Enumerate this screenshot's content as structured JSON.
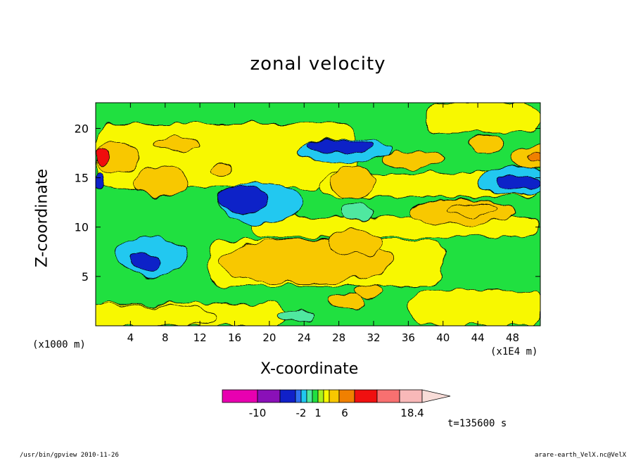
{
  "chart_data": {
    "type": "heatmap",
    "title": "zonal velocity",
    "xlabel": "X-coordinate",
    "ylabel": "Z-coordinate",
    "x_unit_label": "(x1000 m)",
    "x_scale_label": "(x1E4 m)",
    "x_ticks": [
      4,
      8,
      12,
      16,
      20,
      24,
      28,
      32,
      36,
      40,
      44,
      48
    ],
    "y_ticks": [
      5,
      10,
      15,
      20
    ],
    "xlim": [
      0,
      51.2
    ],
    "ylim": [
      0,
      22.6
    ],
    "colorbar": {
      "labels": [
        -10,
        -2,
        1,
        6,
        18.4
      ],
      "colors": [
        "#e800b0",
        "#8a10b8",
        "#1020c8",
        "#3070f0",
        "#20c8f0",
        "#50e8a0",
        "#20e040",
        "#a8f020",
        "#f8f800",
        "#f8c800",
        "#f08000",
        "#f01010",
        "#f87070",
        "#f8b8b8"
      ],
      "extend_color": "#f8dcd8"
    },
    "regions": [
      {
        "value": -6,
        "x": 5.6,
        "y": 6.5,
        "rx": 1.8,
        "ry": 0.9
      },
      {
        "value": -4,
        "x": 6.5,
        "y": 7.0,
        "rx": 4.0,
        "ry": 2.1
      },
      {
        "value": -5,
        "x": 17.0,
        "y": 12.7,
        "rx": 2.9,
        "ry": 1.3
      },
      {
        "value": -3,
        "x": 19.0,
        "y": 12.4,
        "rx": 5.0,
        "ry": 2.0
      },
      {
        "value": -6,
        "x": 28.0,
        "y": 18.2,
        "rx": 3.8,
        "ry": 0.6
      },
      {
        "value": -3,
        "x": 28.5,
        "y": 17.7,
        "rx": 5.5,
        "ry": 1.2
      },
      {
        "value": -6,
        "x": 48.5,
        "y": 14.5,
        "rx": 2.5,
        "ry": 0.8
      },
      {
        "value": -3,
        "x": 48.0,
        "y": 14.6,
        "rx": 4.0,
        "ry": 1.5
      },
      {
        "value": -6,
        "x": 0.4,
        "y": 14.7,
        "rx": 0.6,
        "ry": 1.0
      },
      {
        "value": -2,
        "x": 30.2,
        "y": 11.5,
        "rx": 1.6,
        "ry": 0.9
      },
      {
        "value": -2,
        "x": 23.0,
        "y": 1.0,
        "rx": 2.0,
        "ry": 0.6
      },
      {
        "value": 4,
        "x": 2.5,
        "y": 17.0,
        "rx": 2.5,
        "ry": 1.5
      },
      {
        "value": 10,
        "x": 0.9,
        "y": 17.1,
        "rx": 1.0,
        "ry": 0.7
      },
      {
        "value": 4,
        "x": 50.5,
        "y": 17.1,
        "rx": 2.5,
        "ry": 1.3
      },
      {
        "value": 6,
        "x": 50.8,
        "y": 17.1,
        "rx": 1.0,
        "ry": 0.6
      },
      {
        "value": 4,
        "x": 9.5,
        "y": 18.4,
        "rx": 2.5,
        "ry": 0.7
      },
      {
        "value": 3,
        "x": 7.5,
        "y": 14.5,
        "rx": 3.0,
        "ry": 1.6
      },
      {
        "value": 3,
        "x": 14.5,
        "y": 15.8,
        "rx": 1.5,
        "ry": 0.7
      },
      {
        "value": 3,
        "x": 29.5,
        "y": 14.5,
        "rx": 2.5,
        "ry": 1.6
      },
      {
        "value": 3,
        "x": 24.0,
        "y": 6.5,
        "rx": 10.0,
        "ry": 2.3
      },
      {
        "value": 4,
        "x": 30.0,
        "y": 8.5,
        "rx": 3.0,
        "ry": 1.3
      },
      {
        "value": 3,
        "x": 42.0,
        "y": 11.5,
        "rx": 6.0,
        "ry": 1.3
      },
      {
        "value": 4,
        "x": 43.5,
        "y": 11.8,
        "rx": 3.0,
        "ry": 0.6
      },
      {
        "value": 3,
        "x": 36.5,
        "y": 16.8,
        "rx": 3.5,
        "ry": 0.8
      },
      {
        "value": 3,
        "x": 45.0,
        "y": 18.5,
        "rx": 2.0,
        "ry": 0.8
      },
      {
        "value": 2,
        "x": 5.0,
        "y": 1.0,
        "rx": 9.0,
        "ry": 1.2
      },
      {
        "value": 3,
        "x": 29.0,
        "y": 2.5,
        "rx": 2.0,
        "ry": 0.8
      },
      {
        "value": 3,
        "x": 31.5,
        "y": 3.5,
        "rx": 1.8,
        "ry": 0.6
      }
    ]
  },
  "footer": {
    "time": "t=135600 s",
    "program": "/usr/bin/gpview  2010-11-26",
    "file": "arare-earth_VelX.nc@VelX"
  }
}
